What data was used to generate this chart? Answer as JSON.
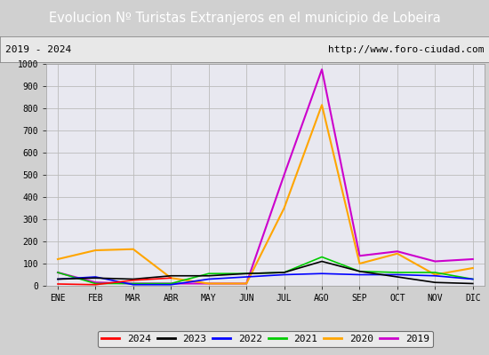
{
  "title": "Evolucion Nº Turistas Extranjeros en el municipio de Lobeira",
  "title_color": "#ffffff",
  "title_bg_color": "#5b7fc7",
  "subtitle_left": "2019 - 2024",
  "subtitle_right": "http://www.foro-ciudad.com",
  "subtitle_bg": "#e8e8e8",
  "months": [
    "ENE",
    "FEB",
    "MAR",
    "ABR",
    "MAY",
    "JUN",
    "JUL",
    "AGO",
    "SEP",
    "OCT",
    "NOV",
    "DIC"
  ],
  "ylim": [
    0,
    1000
  ],
  "yticks": [
    0,
    100,
    200,
    300,
    400,
    500,
    600,
    700,
    800,
    900,
    1000
  ],
  "series": {
    "2024": {
      "color": "#ff0000",
      "data": [
        8,
        5,
        25,
        35,
        null,
        null,
        null,
        null,
        null,
        null,
        null,
        null
      ]
    },
    "2023": {
      "color": "#000000",
      "data": [
        30,
        35,
        30,
        45,
        45,
        55,
        60,
        110,
        65,
        40,
        15,
        10
      ]
    },
    "2022": {
      "color": "#0000ff",
      "data": [
        30,
        40,
        5,
        5,
        30,
        40,
        50,
        55,
        50,
        50,
        45,
        30
      ]
    },
    "2021": {
      "color": "#00cc00",
      "data": [
        60,
        10,
        10,
        10,
        55,
        55,
        60,
        130,
        65,
        60,
        60,
        30
      ]
    },
    "2020": {
      "color": "#ffa500",
      "data": [
        120,
        160,
        165,
        35,
        10,
        10,
        350,
        815,
        100,
        145,
        50,
        80
      ]
    },
    "2019": {
      "color": "#cc00cc",
      "data": [
        60,
        15,
        10,
        10,
        10,
        10,
        500,
        975,
        135,
        155,
        110,
        120
      ]
    }
  },
  "legend_order": [
    "2024",
    "2023",
    "2022",
    "2021",
    "2020",
    "2019"
  ],
  "fig_bg_color": "#d0d0d0",
  "plot_bg_color": "#e8e8f0",
  "grid_color": "#bbbbbb"
}
